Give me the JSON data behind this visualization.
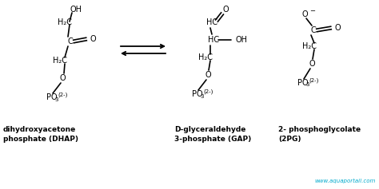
{
  "bg_color": "#ffffff",
  "text_color": "#000000",
  "watermark_color": "#00aacc",
  "watermark": "www.aquaportail.com",
  "label1_line1": "dihydroxyacetone",
  "label1_line2": "phosphate (DHAP)",
  "label2_line1": "D-glyceraldehyde",
  "label2_line2": "3-phosphate (GAP)",
  "label3_line1": "2- phosphoglycolate",
  "label3_line2": "(2PG)",
  "fs": 7.0,
  "fs_sub": 5.0,
  "fs_label": 6.5,
  "lw": 1.2
}
